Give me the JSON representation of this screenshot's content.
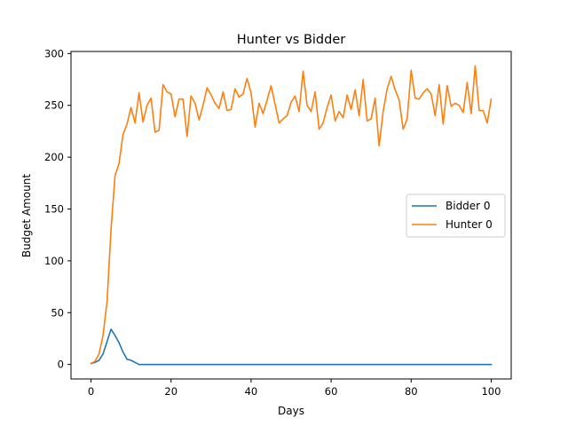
{
  "chart_data": {
    "type": "line",
    "title": "Hunter vs Bidder",
    "xlabel": "Days",
    "ylabel": "Budget Amount",
    "xlim": [
      -5,
      105
    ],
    "ylim": [
      -14,
      302
    ],
    "xticks": [
      0,
      20,
      40,
      60,
      80,
      100
    ],
    "yticks": [
      0,
      50,
      100,
      150,
      200,
      250,
      300
    ],
    "grid": false,
    "legend": "center-right",
    "series": [
      {
        "name": "Bidder 0",
        "color": "#1f77b4",
        "x": [
          0,
          1,
          2,
          3,
          4,
          5,
          6,
          7,
          8,
          9,
          10,
          11,
          12,
          13,
          14,
          15,
          16,
          17,
          18,
          19,
          20,
          21,
          22,
          23,
          24,
          25,
          26,
          27,
          28,
          29,
          30,
          31,
          32,
          33,
          34,
          35,
          36,
          37,
          38,
          39,
          40,
          41,
          42,
          43,
          44,
          45,
          46,
          47,
          48,
          49,
          50,
          51,
          52,
          53,
          54,
          55,
          56,
          57,
          58,
          59,
          60,
          61,
          62,
          63,
          64,
          65,
          66,
          67,
          68,
          69,
          70,
          71,
          72,
          73,
          74,
          75,
          76,
          77,
          78,
          79,
          80,
          81,
          82,
          83,
          84,
          85,
          86,
          87,
          88,
          89,
          90,
          91,
          92,
          93,
          94,
          95,
          96,
          97,
          98,
          99,
          100
        ],
        "values": [
          1,
          2,
          4,
          10,
          22,
          34,
          28,
          21,
          12,
          5,
          4,
          2,
          0,
          0,
          0,
          0,
          0,
          0,
          0,
          0,
          0,
          0,
          0,
          0,
          0,
          0,
          0,
          0,
          0,
          0,
          0,
          0,
          0,
          0,
          0,
          0,
          0,
          0,
          0,
          0,
          0,
          0,
          0,
          0,
          0,
          0,
          0,
          0,
          0,
          0,
          0,
          0,
          0,
          0,
          0,
          0,
          0,
          0,
          0,
          0,
          0,
          0,
          0,
          0,
          0,
          0,
          0,
          0,
          0,
          0,
          0,
          0,
          0,
          0,
          0,
          0,
          0,
          0,
          0,
          0,
          0,
          0,
          0,
          0,
          0,
          0,
          0,
          0,
          0,
          0,
          0,
          0,
          0,
          0,
          0,
          0,
          0,
          0,
          0,
          0,
          0
        ]
      },
      {
        "name": "Hunter 0",
        "color": "#ff7f0e",
        "x": [
          0,
          1,
          2,
          3,
          4,
          5,
          6,
          7,
          8,
          9,
          10,
          11,
          12,
          13,
          14,
          15,
          16,
          17,
          18,
          19,
          20,
          21,
          22,
          23,
          24,
          25,
          26,
          27,
          28,
          29,
          30,
          31,
          32,
          33,
          34,
          35,
          36,
          37,
          38,
          39,
          40,
          41,
          42,
          43,
          44,
          45,
          46,
          47,
          48,
          49,
          50,
          51,
          52,
          53,
          54,
          55,
          56,
          57,
          58,
          59,
          60,
          61,
          62,
          63,
          64,
          65,
          66,
          67,
          68,
          69,
          70,
          71,
          72,
          73,
          74,
          75,
          76,
          77,
          78,
          79,
          80,
          81,
          82,
          83,
          84,
          85,
          86,
          87,
          88,
          89,
          90,
          91,
          92,
          93,
          94,
          95,
          96,
          97,
          98,
          99,
          100
        ],
        "values": [
          1,
          3,
          10,
          28,
          60,
          130,
          182,
          194,
          222,
          232,
          248,
          233,
          262,
          234,
          250,
          257,
          224,
          226,
          270,
          263,
          261,
          239,
          256,
          256,
          220,
          259,
          252,
          236,
          250,
          267,
          260,
          252,
          247,
          263,
          245,
          246,
          266,
          258,
          261,
          276,
          262,
          229,
          252,
          242,
          255,
          269,
          251,
          233,
          237,
          240,
          253,
          259,
          244,
          283,
          250,
          244,
          263,
          227,
          233,
          248,
          260,
          235,
          244,
          238,
          260,
          246,
          265,
          240,
          275,
          235,
          237,
          257,
          211,
          244,
          266,
          278,
          265,
          255,
          227,
          237,
          284,
          257,
          256,
          262,
          266,
          261,
          240,
          270,
          232,
          269,
          249,
          252,
          250,
          243,
          272,
          242,
          288,
          245,
          245,
          233,
          256
        ]
      }
    ]
  }
}
